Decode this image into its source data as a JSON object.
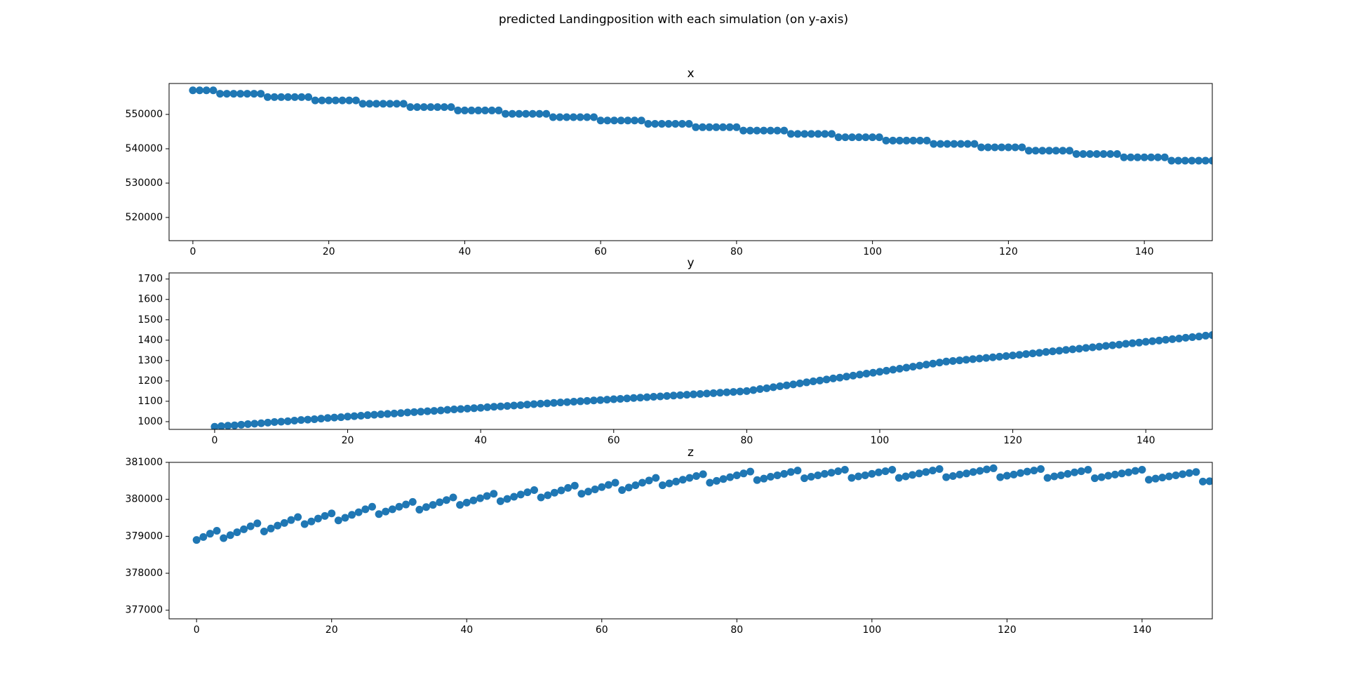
{
  "title": "predicted Landingposition with each simulation (on y-axis)",
  "chart_data": [
    {
      "type": "scatter",
      "title": "x",
      "color": "#1f77b4",
      "x": [
        0,
        1,
        2,
        3,
        4,
        5,
        6,
        7,
        8,
        9,
        10,
        11,
        12,
        13,
        14,
        15,
        16,
        17,
        18,
        19,
        20,
        21,
        22,
        23,
        24,
        25,
        26,
        27,
        28,
        29,
        30,
        31,
        32,
        33,
        34,
        35,
        36,
        37,
        38,
        39,
        40,
        41,
        42,
        43,
        44,
        45,
        46,
        47,
        48,
        49,
        50,
        51,
        52,
        53,
        54,
        55,
        56,
        57,
        58,
        59,
        60,
        61,
        62,
        63,
        64,
        65,
        66,
        67,
        68,
        69,
        70,
        71,
        72,
        73,
        74,
        75,
        76,
        77,
        78,
        79,
        80,
        81,
        82,
        83,
        84,
        85,
        86,
        87,
        88,
        89,
        90,
        91,
        92,
        93,
        94,
        95,
        96,
        97,
        98,
        99,
        100,
        101,
        102,
        103,
        104,
        105,
        106,
        107,
        108,
        109,
        110,
        111,
        112,
        113,
        114,
        115,
        116,
        117,
        118,
        119,
        120,
        121,
        122,
        123,
        124,
        125,
        126,
        127,
        128,
        129,
        130,
        131,
        132,
        133,
        134,
        135,
        136,
        137,
        138,
        139,
        140,
        141,
        142,
        143,
        144,
        145,
        146,
        147,
        148,
        149,
        150
      ],
      "values": [
        557000,
        557000,
        557000,
        557000,
        556025,
        556025,
        556025,
        556025,
        556025,
        556025,
        556025,
        555050,
        555050,
        555050,
        555050,
        555050,
        555050,
        555050,
        554075,
        554075,
        554075,
        554075,
        554075,
        554075,
        554075,
        553100,
        553100,
        553100,
        553100,
        553100,
        553100,
        553100,
        552125,
        552125,
        552125,
        552125,
        552125,
        552125,
        552125,
        551150,
        551150,
        551150,
        551150,
        551150,
        551150,
        551150,
        550175,
        550175,
        550175,
        550175,
        550175,
        550175,
        550175,
        549200,
        549200,
        549200,
        549200,
        549200,
        549200,
        549200,
        548225,
        548225,
        548225,
        548225,
        548225,
        548225,
        548225,
        547250,
        547250,
        547250,
        547250,
        547250,
        547250,
        547250,
        546275,
        546275,
        546275,
        546275,
        546275,
        546275,
        546275,
        545300,
        545300,
        545300,
        545300,
        545300,
        545300,
        545300,
        544325,
        544325,
        544325,
        544325,
        544325,
        544325,
        544325,
        543350,
        543350,
        543350,
        543350,
        543350,
        543350,
        543350,
        542375,
        542375,
        542375,
        542375,
        542375,
        542375,
        542375,
        541400,
        541400,
        541400,
        541400,
        541400,
        541400,
        541400,
        540425,
        540425,
        540425,
        540425,
        540425,
        540425,
        540425,
        539450,
        539450,
        539450,
        539450,
        539450,
        539450,
        539450,
        538475,
        538475,
        538475,
        538475,
        538475,
        538475,
        538475,
        537500,
        537500,
        537500,
        537500,
        537500,
        537500,
        537500,
        536525,
        536525,
        536525,
        536525,
        536525,
        536525,
        536525
      ],
      "xlim": [
        -3.5,
        150
      ],
      "xticks": [
        0,
        20,
        40,
        60,
        80,
        100,
        120,
        140
      ],
      "ylim": [
        513250,
        559000
      ],
      "yticks": [
        520000,
        530000,
        540000,
        550000
      ]
    },
    {
      "type": "scatter",
      "title": "y",
      "color": "#1f77b4",
      "x": [
        0,
        1,
        2,
        3,
        4,
        5,
        6,
        7,
        8,
        9,
        10,
        11,
        12,
        13,
        14,
        15,
        16,
        17,
        18,
        19,
        20,
        21,
        22,
        23,
        24,
        25,
        26,
        27,
        28,
        29,
        30,
        31,
        32,
        33,
        34,
        35,
        36,
        37,
        38,
        39,
        40,
        41,
        42,
        43,
        44,
        45,
        46,
        47,
        48,
        49,
        50,
        51,
        52,
        53,
        54,
        55,
        56,
        57,
        58,
        59,
        60,
        61,
        62,
        63,
        64,
        65,
        66,
        67,
        68,
        69,
        70,
        71,
        72,
        73,
        74,
        75,
        76,
        77,
        78,
        79,
        80,
        81,
        82,
        83,
        84,
        85,
        86,
        87,
        88,
        89,
        90,
        91,
        92,
        93,
        94,
        95,
        96,
        97,
        98,
        99,
        100,
        101,
        102,
        103,
        104,
        105,
        106,
        107,
        108,
        109,
        110,
        111,
        112,
        113,
        114,
        115,
        116,
        117,
        118,
        119,
        120,
        121,
        122,
        123,
        124,
        125,
        126,
        127,
        128,
        129,
        130,
        131,
        132,
        133,
        134,
        135,
        136,
        137,
        138,
        139,
        140,
        141,
        142,
        143,
        144,
        145,
        146,
        147,
        148,
        149,
        150
      ],
      "values": [
        975,
        978,
        980,
        982,
        985,
        988,
        990,
        992,
        995,
        998,
        1000,
        1002,
        1005,
        1008,
        1010,
        1012,
        1015,
        1018,
        1020,
        1022,
        1025,
        1027,
        1029,
        1032,
        1034,
        1036,
        1038,
        1040,
        1042,
        1045,
        1047,
        1049,
        1051,
        1053,
        1055,
        1058,
        1060,
        1062,
        1064,
        1066,
        1068,
        1071,
        1073,
        1075,
        1077,
        1079,
        1081,
        1084,
        1086,
        1088,
        1090,
        1092,
        1094,
        1096,
        1098,
        1100,
        1102,
        1104,
        1106,
        1108,
        1110,
        1112,
        1114,
        1116,
        1118,
        1120,
        1122,
        1124,
        1126,
        1128,
        1130,
        1132,
        1134,
        1136,
        1138,
        1140,
        1142,
        1144,
        1146,
        1148,
        1150,
        1155,
        1160,
        1164,
        1169,
        1174,
        1178,
        1183,
        1188,
        1193,
        1198,
        1202,
        1207,
        1212,
        1216,
        1221,
        1226,
        1231,
        1236,
        1240,
        1245,
        1250,
        1255,
        1260,
        1265,
        1270,
        1275,
        1280,
        1285,
        1290,
        1295,
        1298,
        1301,
        1304,
        1307,
        1310,
        1313,
        1316,
        1319,
        1322,
        1325,
        1328,
        1332,
        1335,
        1338,
        1342,
        1345,
        1348,
        1352,
        1355,
        1358,
        1362,
        1365,
        1368,
        1372,
        1375,
        1378,
        1382,
        1385,
        1388,
        1392,
        1395,
        1398,
        1402,
        1405,
        1408,
        1412,
        1415,
        1418,
        1422,
        1425
      ],
      "xlim": [
        -6.85,
        150
      ],
      "xticks": [
        0,
        20,
        40,
        60,
        80,
        100,
        120,
        140
      ],
      "ylim": [
        962,
        1730
      ],
      "yticks": [
        1000,
        1100,
        1200,
        1300,
        1400,
        1500,
        1600,
        1700
      ]
    },
    {
      "type": "scatter",
      "title": "z",
      "color": "#1f77b4",
      "x": [
        0,
        1,
        2,
        3,
        4,
        5,
        6,
        7,
        8,
        9,
        10,
        11,
        12,
        13,
        14,
        15,
        16,
        17,
        18,
        19,
        20,
        21,
        22,
        23,
        24,
        25,
        26,
        27,
        28,
        29,
        30,
        31,
        32,
        33,
        34,
        35,
        36,
        37,
        38,
        39,
        40,
        41,
        42,
        43,
        44,
        45,
        46,
        47,
        48,
        49,
        50,
        51,
        52,
        53,
        54,
        55,
        56,
        57,
        58,
        59,
        60,
        61,
        62,
        63,
        64,
        65,
        66,
        67,
        68,
        69,
        70,
        71,
        72,
        73,
        74,
        75,
        76,
        77,
        78,
        79,
        80,
        81,
        82,
        83,
        84,
        85,
        86,
        87,
        88,
        89,
        90,
        91,
        92,
        93,
        94,
        95,
        96,
        97,
        98,
        99,
        100,
        101,
        102,
        103,
        104,
        105,
        106,
        107,
        108,
        109,
        110,
        111,
        112,
        113,
        114,
        115,
        116,
        117,
        118,
        119,
        120,
        121,
        122,
        123,
        124,
        125,
        126,
        127,
        128,
        129,
        130,
        131,
        132,
        133,
        134,
        135,
        136,
        137,
        138,
        139,
        140,
        141,
        142,
        143,
        144,
        145,
        146,
        147,
        148,
        149,
        150
      ],
      "values": [
        378900,
        378980,
        379070,
        379150,
        378950,
        379030,
        379110,
        379190,
        379270,
        379350,
        379130,
        379210,
        379290,
        379360,
        379440,
        379520,
        379330,
        379400,
        379480,
        379550,
        379620,
        379430,
        379500,
        379580,
        379650,
        379730,
        379800,
        379600,
        379670,
        379730,
        379800,
        379860,
        379930,
        379720,
        379790,
        379850,
        379920,
        379980,
        380050,
        379850,
        379910,
        379970,
        380030,
        380090,
        380150,
        379950,
        380010,
        380070,
        380130,
        380190,
        380250,
        380050,
        380110,
        380180,
        380240,
        380310,
        380370,
        380150,
        380210,
        380270,
        380330,
        380390,
        380450,
        380250,
        380320,
        380380,
        380450,
        380510,
        380580,
        380380,
        380430,
        380480,
        380530,
        380580,
        380630,
        380680,
        380450,
        380500,
        380550,
        380600,
        380650,
        380700,
        380750,
        380520,
        380560,
        380610,
        380650,
        380690,
        380740,
        380780,
        380570,
        380610,
        380650,
        380690,
        380720,
        380760,
        380800,
        380580,
        380620,
        380650,
        380690,
        380730,
        380760,
        380800,
        380580,
        380620,
        380660,
        380700,
        380740,
        380780,
        380820,
        380600,
        380630,
        380670,
        380700,
        380740,
        380770,
        380810,
        380840,
        380600,
        380640,
        380670,
        380710,
        380750,
        380780,
        380820,
        380580,
        380620,
        380650,
        380690,
        380730,
        380760,
        380800,
        380570,
        380600,
        380640,
        380670,
        380700,
        380730,
        380770,
        380800,
        380530,
        380560,
        380590,
        380620,
        380650,
        380680,
        380710,
        380740,
        380480,
        380490
      ],
      "xlim": [
        -4.07,
        150.4
      ],
      "xticks": [
        0,
        20,
        40,
        60,
        80,
        100,
        120,
        140
      ],
      "ylim": [
        376767,
        381000
      ],
      "yticks": [
        377000,
        378000,
        379000,
        380000,
        381000
      ]
    }
  ]
}
